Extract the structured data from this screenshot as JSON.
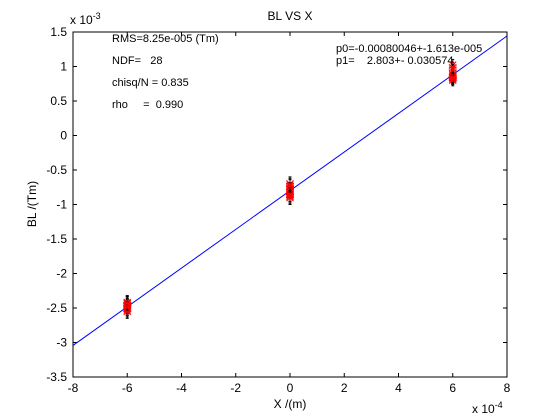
{
  "chart_data": {
    "type": "scatter",
    "title": "BL VS X",
    "xlabel": "X /(m)",
    "ylabel": "BL /(Tm)",
    "x_scale_label": "x 10",
    "x_scale_exp": "-4",
    "y_scale_label": "x 10",
    "y_scale_exp": "-3",
    "xlim": [
      -8,
      8
    ],
    "ylim": [
      -3.5,
      1.5
    ],
    "x_ticks": [
      -8,
      -6,
      -4,
      -2,
      0,
      2,
      4,
      6,
      8
    ],
    "y_ticks": [
      -3.5,
      -3,
      -2.5,
      -2,
      -1.5,
      -1,
      -0.5,
      0,
      0.5,
      1,
      1.5
    ],
    "grid": false,
    "fit_line": {
      "slope": 0.2803,
      "intercept": -0.8005,
      "color": "#0000ff"
    },
    "series": [
      {
        "marker_color": "#ff0000",
        "errorbar_color": "#000000",
        "points": [
          {
            "x": -6,
            "y": -2.42,
            "err": 0.1
          },
          {
            "x": -6,
            "y": -2.46,
            "err": 0.1
          },
          {
            "x": -6,
            "y": -2.5,
            "err": 0.1
          },
          {
            "x": -6,
            "y": -2.53,
            "err": 0.1
          },
          {
            "x": -6,
            "y": -2.48,
            "err": 0.1
          },
          {
            "x": -6,
            "y": -2.44,
            "err": 0.1
          },
          {
            "x": -6,
            "y": -2.51,
            "err": 0.1
          },
          {
            "x": -6,
            "y": -2.47,
            "err": 0.1
          },
          {
            "x": -6,
            "y": -2.55,
            "err": 0.1
          },
          {
            "x": -6,
            "y": -2.43,
            "err": 0.1
          },
          {
            "x": 0,
            "y": -0.7,
            "err": 0.1
          },
          {
            "x": 0,
            "y": -0.74,
            "err": 0.1
          },
          {
            "x": 0,
            "y": -0.78,
            "err": 0.1
          },
          {
            "x": 0,
            "y": -0.82,
            "err": 0.1
          },
          {
            "x": 0,
            "y": -0.85,
            "err": 0.1
          },
          {
            "x": 0,
            "y": -0.88,
            "err": 0.1
          },
          {
            "x": 0,
            "y": -0.8,
            "err": 0.1
          },
          {
            "x": 0,
            "y": -0.86,
            "err": 0.1
          },
          {
            "x": 0,
            "y": -0.72,
            "err": 0.1
          },
          {
            "x": 0,
            "y": -0.9,
            "err": 0.1
          },
          {
            "x": 6,
            "y": 0.82,
            "err": 0.08
          },
          {
            "x": 6,
            "y": 0.86,
            "err": 0.08
          },
          {
            "x": 6,
            "y": 0.84,
            "err": 0.08
          },
          {
            "x": 6,
            "y": 0.88,
            "err": 0.08
          },
          {
            "x": 6,
            "y": 0.98,
            "err": 0.08
          },
          {
            "x": 6,
            "y": 1.02,
            "err": 0.08
          },
          {
            "x": 6,
            "y": 0.8,
            "err": 0.08
          },
          {
            "x": 6,
            "y": 0.85,
            "err": 0.08
          },
          {
            "x": 6,
            "y": 0.95,
            "err": 0.08
          },
          {
            "x": 6,
            "y": 0.83,
            "err": 0.08
          }
        ]
      }
    ],
    "annotations": {
      "rms": "RMS=8.25e-005 (Tm)",
      "ndf": "NDF=   28",
      "chisq": "chisq/N = 0.835",
      "rho": "rho     =  0.990",
      "p0": "p0=-0.00080046+-1.613e-005",
      "p1": "p1=    2.803+- 0.030574"
    }
  }
}
